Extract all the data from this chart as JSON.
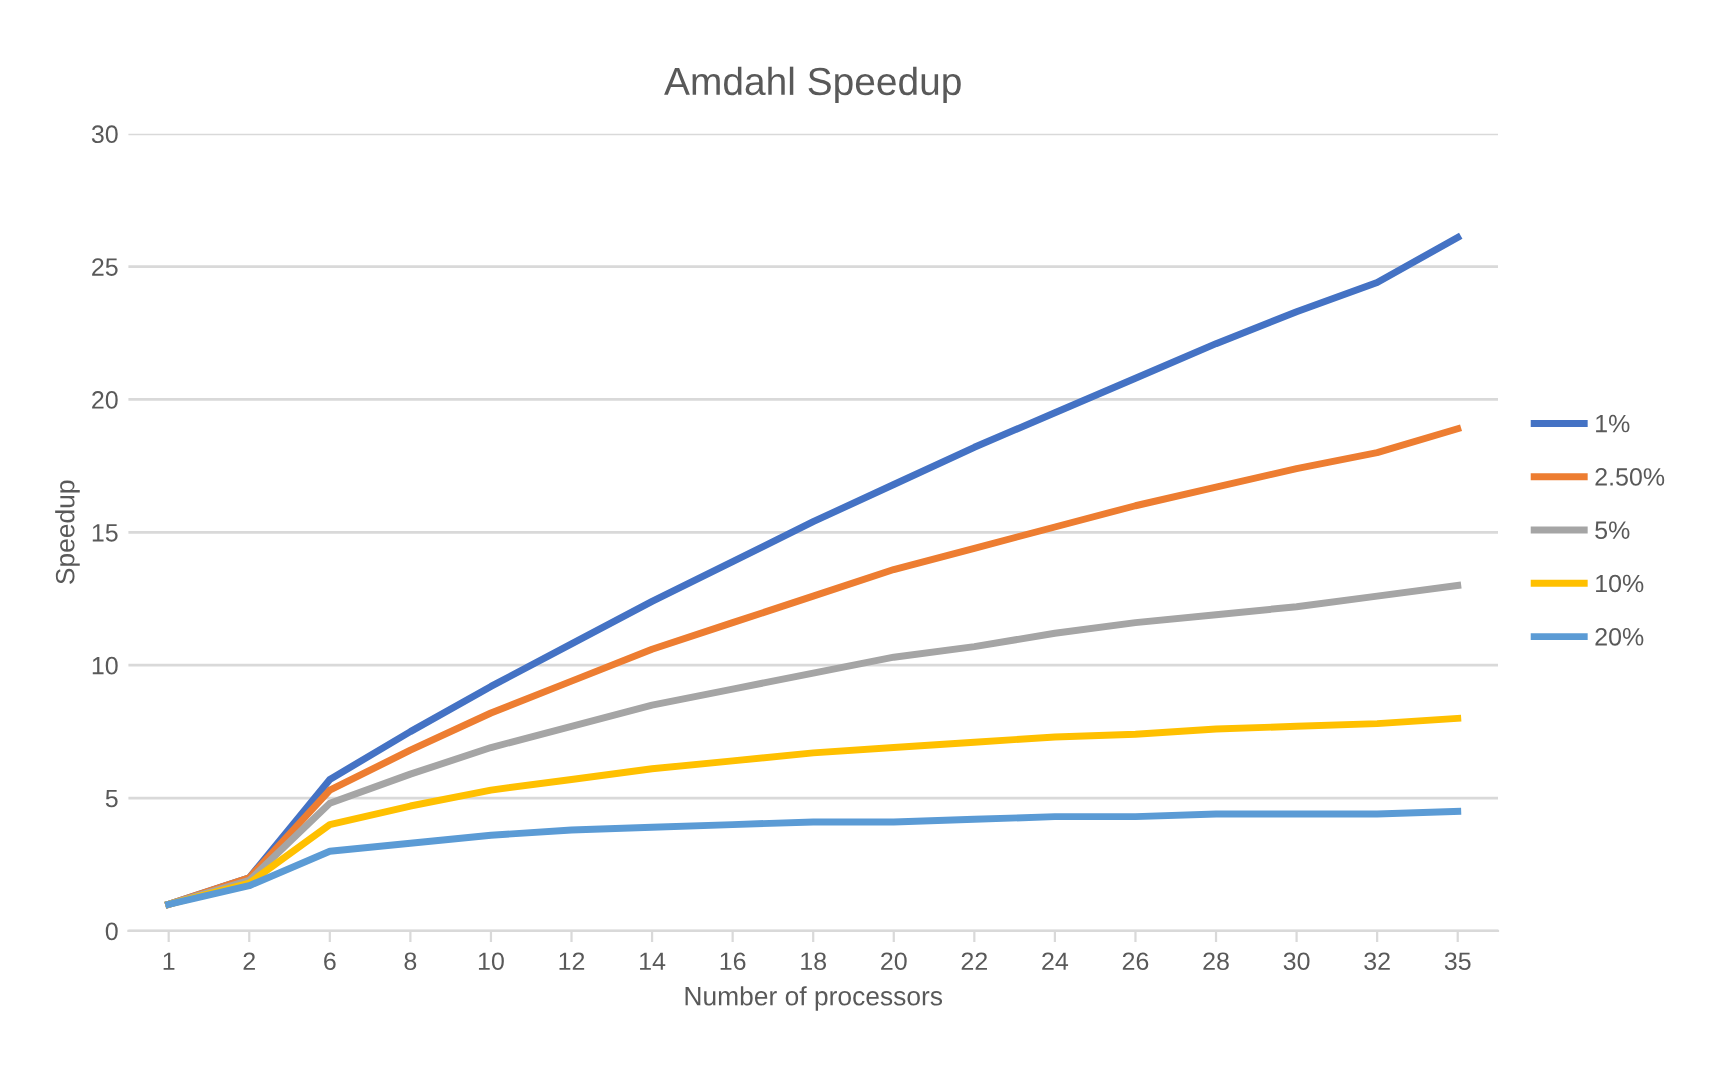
{
  "chart_data": {
    "type": "line",
    "title": "Amdahl Speedup",
    "xlabel": "Number of processors",
    "ylabel": "Speedup",
    "categories": [
      "1",
      "2",
      "6",
      "8",
      "10",
      "12",
      "14",
      "16",
      "18",
      "20",
      "22",
      "24",
      "26",
      "28",
      "30",
      "32",
      "35"
    ],
    "series": [
      {
        "name": "1%",
        "color": "#4472c4",
        "values": [
          1,
          2.0,
          5.7,
          7.5,
          9.2,
          10.8,
          12.4,
          13.9,
          15.4,
          16.8,
          18.2,
          19.5,
          20.8,
          22.1,
          23.3,
          24.4,
          26.1
        ]
      },
      {
        "name": "2.50%",
        "color": "#ed7d31",
        "values": [
          1,
          2.0,
          5.3,
          6.8,
          8.2,
          9.4,
          10.6,
          11.6,
          12.6,
          13.6,
          14.4,
          15.2,
          16.0,
          16.7,
          17.4,
          18.0,
          18.9
        ]
      },
      {
        "name": "5%",
        "color": "#a5a5a5",
        "values": [
          1,
          1.9,
          4.8,
          5.9,
          6.9,
          7.7,
          8.5,
          9.1,
          9.7,
          10.3,
          10.7,
          11.2,
          11.6,
          11.9,
          12.2,
          12.6,
          13.0
        ]
      },
      {
        "name": "10%",
        "color": "#ffc000",
        "values": [
          1,
          1.8,
          4.0,
          4.7,
          5.3,
          5.7,
          6.1,
          6.4,
          6.7,
          6.9,
          7.1,
          7.3,
          7.4,
          7.6,
          7.7,
          7.8,
          8.0
        ]
      },
      {
        "name": "20%",
        "color": "#5b9bd5",
        "values": [
          1,
          1.7,
          3.0,
          3.3,
          3.6,
          3.8,
          3.9,
          4.0,
          4.1,
          4.1,
          4.2,
          4.3,
          4.3,
          4.4,
          4.4,
          4.4,
          4.5
        ]
      }
    ],
    "ylim": [
      0,
      30
    ],
    "yticks": [
      0,
      5,
      10,
      15,
      20,
      25,
      30
    ],
    "grid": "y",
    "legend": "right",
    "marker": "none",
    "line_style": "solid"
  }
}
